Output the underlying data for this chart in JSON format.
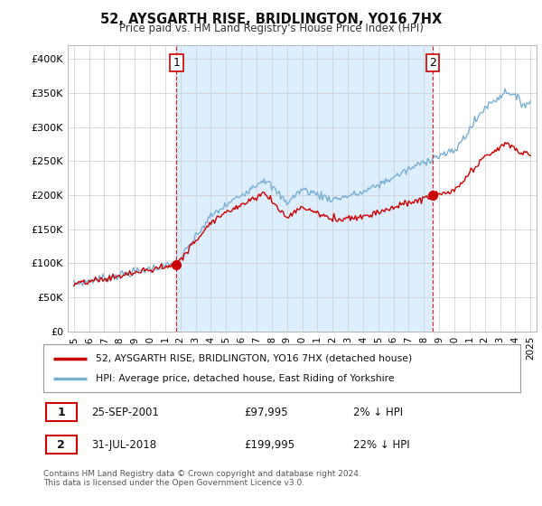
{
  "title": "52, AYSGARTH RISE, BRIDLINGTON, YO16 7HX",
  "subtitle": "Price paid vs. HM Land Registry's House Price Index (HPI)",
  "legend_label_red": "52, AYSGARTH RISE, BRIDLINGTON, YO16 7HX (detached house)",
  "legend_label_blue": "HPI: Average price, detached house, East Riding of Yorkshire",
  "transaction1_label": "1",
  "transaction1_date": "25-SEP-2001",
  "transaction1_price": "£97,995",
  "transaction1_hpi": "2% ↓ HPI",
  "transaction2_label": "2",
  "transaction2_date": "31-JUL-2018",
  "transaction2_price": "£199,995",
  "transaction2_hpi": "22% ↓ HPI",
  "footer": "Contains HM Land Registry data © Crown copyright and database right 2024.\nThis data is licensed under the Open Government Licence v3.0.",
  "ylim": [
    0,
    420000
  ],
  "yticks": [
    0,
    50000,
    100000,
    150000,
    200000,
    250000,
    300000,
    350000,
    400000
  ],
  "ytick_labels": [
    "£0",
    "£50K",
    "£100K",
    "£150K",
    "£200K",
    "£250K",
    "£300K",
    "£350K",
    "£400K"
  ],
  "color_red": "#cc0000",
  "color_blue": "#7aafd4",
  "shade_color": "#ddeeff",
  "background_color": "#ffffff",
  "grid_color": "#cccccc",
  "transaction1_x": 2001.75,
  "transaction1_y": 97995,
  "transaction2_x": 2018.58,
  "transaction2_y": 199995,
  "vline1_x": 2001.75,
  "vline2_x": 2018.58,
  "xlim_left": 1994.6,
  "xlim_right": 2025.4
}
